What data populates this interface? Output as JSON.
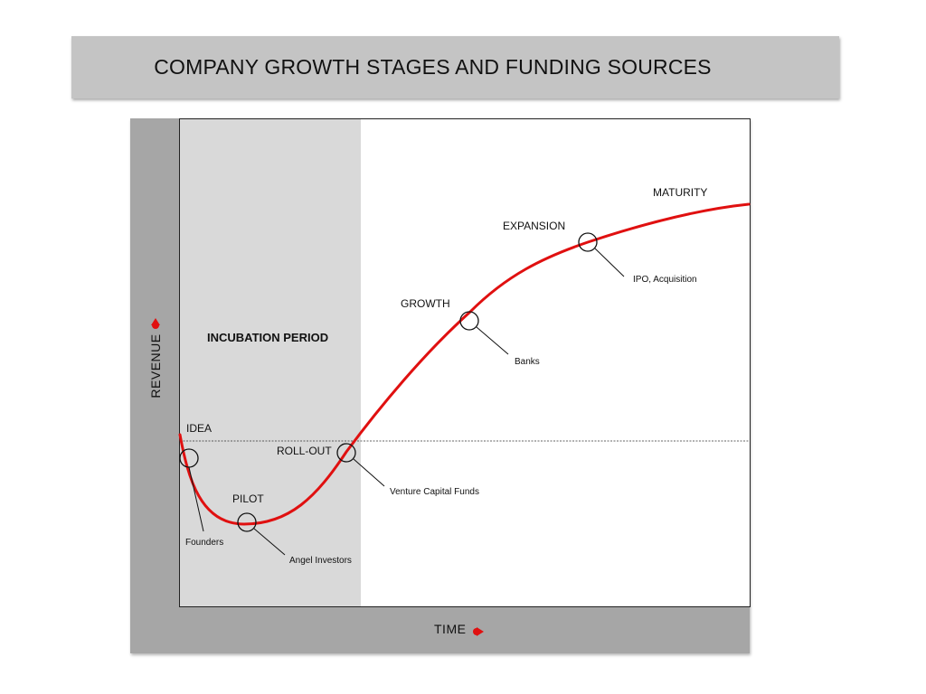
{
  "title": "COMPANY GROWTH STAGES AND FUNDING SOURCES",
  "axes": {
    "y_label": "REVENUE",
    "x_label": "TIME"
  },
  "regions": {
    "incubation_label": "INCUBATION PERIOD"
  },
  "stages": [
    {
      "name": "IDEA",
      "funding": "Founders"
    },
    {
      "name": "PILOT",
      "funding": "Angel Investors"
    },
    {
      "name": "ROLL-OUT",
      "funding": "Venture Capital Funds"
    },
    {
      "name": "GROWTH",
      "funding": "Banks"
    },
    {
      "name": "EXPANSION",
      "funding": "IPO, Acquisition"
    },
    {
      "name": "MATURITY",
      "funding": ""
    }
  ],
  "colors": {
    "curve": "#e01010",
    "arrow": "#e01010",
    "incubation": "#d9d9d9",
    "frame": "#a6a6a6",
    "title_bar": "#c4c4c4"
  }
}
